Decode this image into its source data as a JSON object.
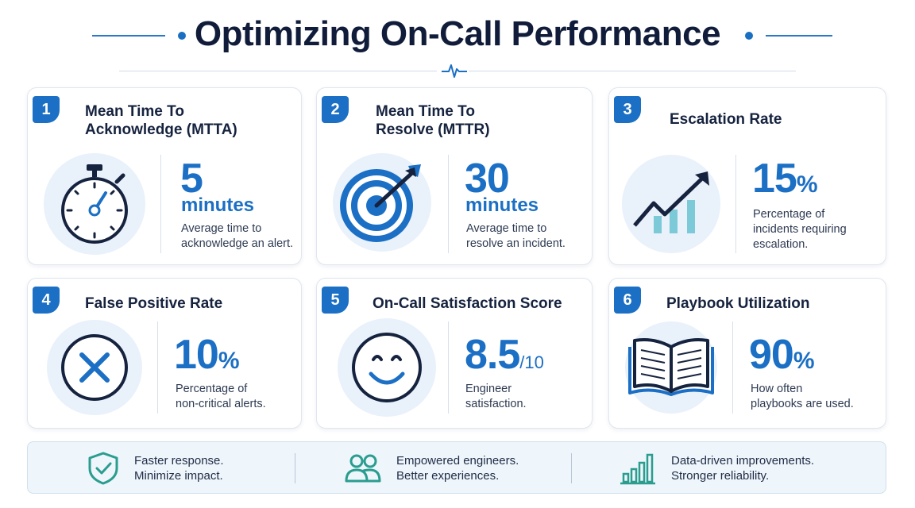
{
  "title": "Optimizing On-Call Performance",
  "colors": {
    "accent": "#1b6fc4",
    "teal": "#2a9d8f",
    "navy": "#16233f",
    "soft": "#e9f1fb"
  },
  "cards": [
    {
      "number": "1",
      "title_line1": "Mean Time To",
      "title_line2": "Acknowledge (MTTA)",
      "value": "5",
      "value_unit": "minutes",
      "desc_line1": "Average time to",
      "desc_line2": "acknowledge an alert.",
      "icon": "stopwatch-icon"
    },
    {
      "number": "2",
      "title_line1": "Mean Time To",
      "title_line2": "Resolve (MTTR)",
      "value": "30",
      "value_unit": "minutes",
      "desc_line1": "Average time to",
      "desc_line2": "resolve an incident.",
      "icon": "target-icon"
    },
    {
      "number": "3",
      "title_line1": "Escalation Rate",
      "value": "15",
      "value_suffix": "%",
      "desc_line1": "Percentage of",
      "desc_line2": "incidents requiring",
      "desc_line3": "escalation.",
      "icon": "trend-up-icon"
    },
    {
      "number": "4",
      "title_line1": "False Positive Rate",
      "value": "10",
      "value_suffix": "%",
      "desc_line1": "Percentage of",
      "desc_line2": "non-critical alerts.",
      "icon": "x-circle-icon"
    },
    {
      "number": "5",
      "title_line1": "On-Call Satisfaction Score",
      "value": "8.5",
      "value_suffix": "/10",
      "desc_line1": "Engineer",
      "desc_line2": "satisfaction.",
      "icon": "smiley-icon"
    },
    {
      "number": "6",
      "title_line1": "Playbook Utilization",
      "value": "90",
      "value_suffix": "%",
      "desc_line1": "How often",
      "desc_line2": "playbooks are used.",
      "icon": "book-icon"
    }
  ],
  "footer": [
    {
      "line1": "Faster response.",
      "line2": "Minimize impact.",
      "icon": "shield-check-icon"
    },
    {
      "line1": "Empowered engineers.",
      "line2": "Better experiences.",
      "icon": "people-icon"
    },
    {
      "line1": "Data-driven improvements.",
      "line2": "Stronger reliability.",
      "icon": "bar-chart-icon"
    }
  ]
}
